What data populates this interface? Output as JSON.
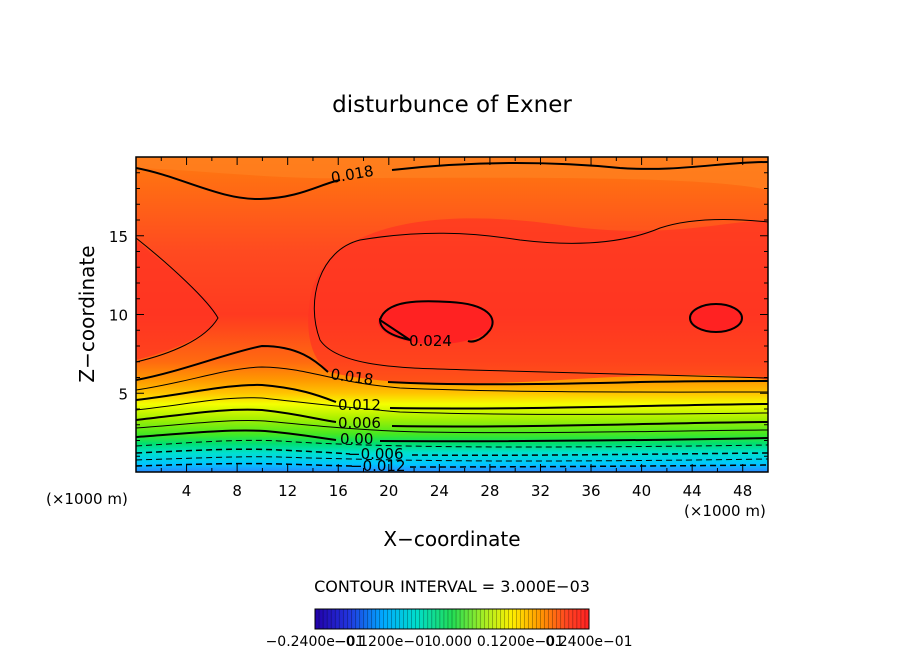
{
  "chart_data": {
    "type": "contour",
    "title": "disturbunce of Exner",
    "xlabel": "X−coordinate",
    "ylabel": "Z−coordinate",
    "x_unit_left": "(×1000 m)",
    "x_unit_right": "(×1000 m)",
    "xlim": [
      0,
      50
    ],
    "ylim": [
      0,
      20
    ],
    "x_ticks": [
      "4",
      "8",
      "12",
      "16",
      "20",
      "24",
      "28",
      "32",
      "36",
      "40",
      "44",
      "48"
    ],
    "y_ticks": [
      "5",
      "10",
      "15"
    ],
    "contour_interval": "CONTOUR INTERVAL = 3.000E−03",
    "contour_labels": [
      "0.018",
      "0.024",
      "0.018",
      "0.012",
      "0.006",
      "0.00",
      "−0.006",
      "−0.012"
    ],
    "colorbar_labels": [
      "−0.2400e−01",
      "−0.1200e−01",
      "0.000",
      "0.1200e−01",
      "0.2400e−01"
    ],
    "colormap": [
      "#3333cc",
      "#00aaff",
      "#00ddcc",
      "#22dd55",
      "#88ee22",
      "#eeff00",
      "#ffbb00",
      "#ff7700",
      "#ff4422",
      "#ff2222"
    ]
  }
}
